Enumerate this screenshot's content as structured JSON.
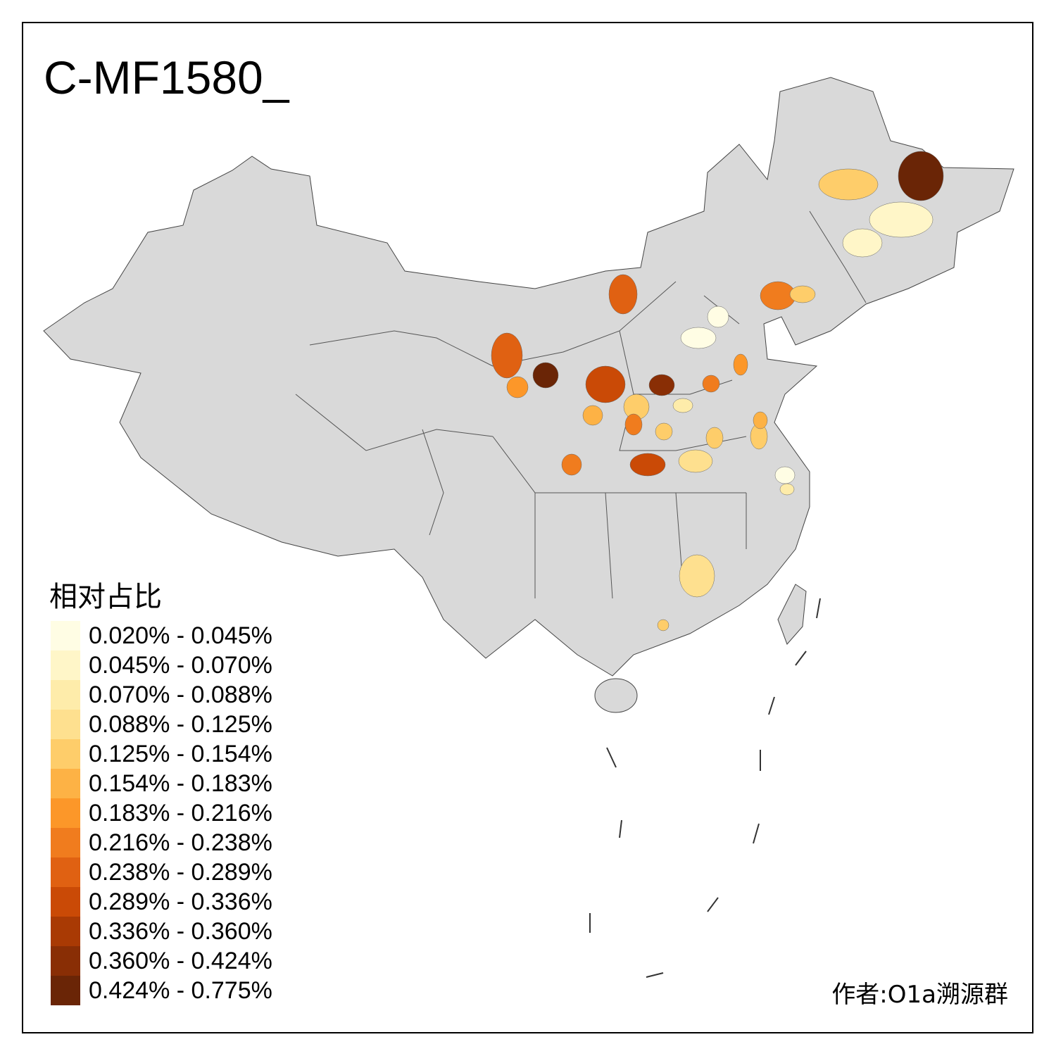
{
  "title": "C-MF1580_",
  "legend": {
    "title": "相对占比",
    "classes": [
      {
        "label": "0.020% - 0.045%",
        "color": "#fffde4"
      },
      {
        "label": "0.045% - 0.070%",
        "color": "#fff6c8"
      },
      {
        "label": "0.070% - 0.088%",
        "color": "#feecaa"
      },
      {
        "label": "0.088% - 0.125%",
        "color": "#fee08f"
      },
      {
        "label": "0.125% - 0.154%",
        "color": "#fecd6a"
      },
      {
        "label": "0.154% - 0.183%",
        "color": "#fdb245"
      },
      {
        "label": "0.183% - 0.216%",
        "color": "#fc9729"
      },
      {
        "label": "0.216% - 0.238%",
        "color": "#f07c1e"
      },
      {
        "label": "0.238% - 0.289%",
        "color": "#e06112"
      },
      {
        "label": "0.289% - 0.336%",
        "color": "#ca4a06"
      },
      {
        "label": "0.336% - 0.360%",
        "color": "#a93a04"
      },
      {
        "label": "0.360% - 0.424%",
        "color": "#892e05"
      },
      {
        "label": "0.424% - 0.775%",
        "color": "#6a2506"
      }
    ]
  },
  "author": "作者:O1a溯源群",
  "map": {
    "base_color": "#d9d9d9",
    "no_data_color": "#d9d9d9",
    "region_classes": [
      12,
      4,
      1,
      1,
      7,
      4,
      0,
      0,
      8,
      8,
      12,
      6,
      9,
      5,
      11,
      4,
      7,
      2,
      6,
      7,
      4,
      4,
      9,
      7,
      3,
      4,
      0,
      2,
      3,
      5,
      4
    ]
  }
}
